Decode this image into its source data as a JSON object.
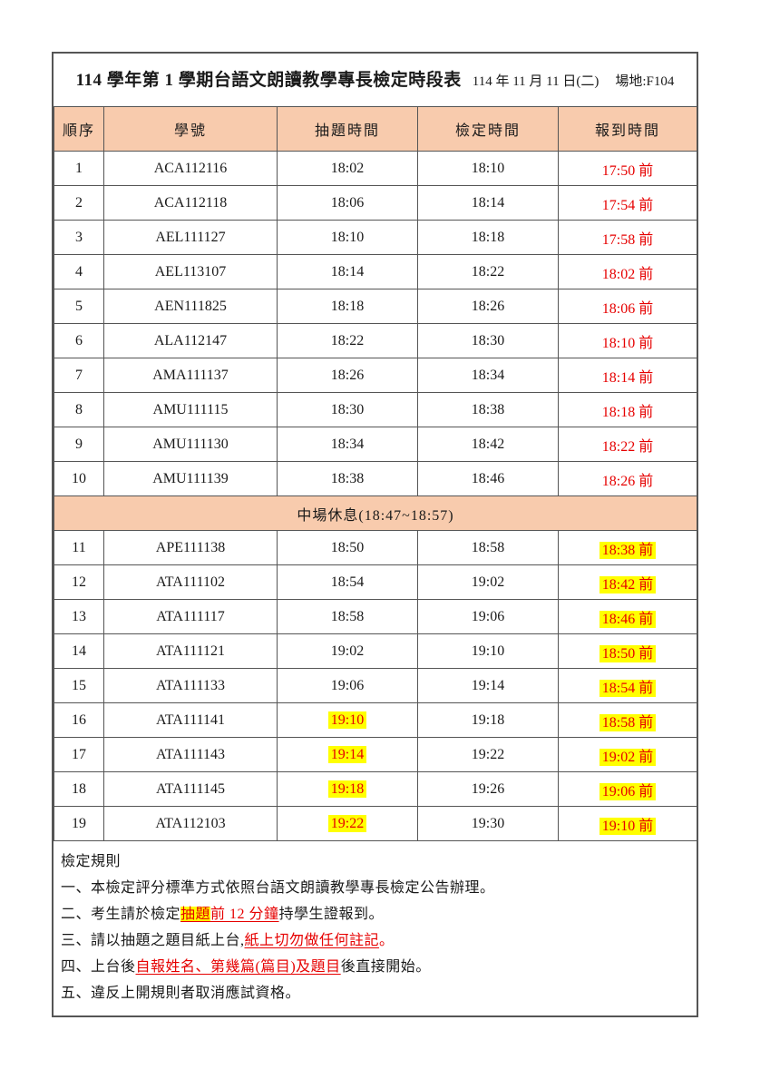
{
  "title": {
    "main": "114 學年第 1 學期台語文朗讀教學專長檢定時段表",
    "date": "114 年 11 月 11 日(二)",
    "venue": "場地:F104"
  },
  "colors": {
    "header_bg": "#F8CBAD",
    "red_text": "#E60000",
    "highlight_yellow": "#FFFF00"
  },
  "table": {
    "headers": [
      "順序",
      "學號",
      "抽題時間",
      "檢定時間",
      "報到時間"
    ],
    "break_label": "中場休息(18:47~18:57)",
    "rows_before_break": [
      {
        "no": "1",
        "student_id": "ACA112116",
        "draw_time": "18:02",
        "exam_time": "18:10",
        "checkin_time": "17:50 前",
        "draw_highlight": false,
        "checkin_highlight": false
      },
      {
        "no": "2",
        "student_id": "ACA112118",
        "draw_time": "18:06",
        "exam_time": "18:14",
        "checkin_time": "17:54 前",
        "draw_highlight": false,
        "checkin_highlight": false
      },
      {
        "no": "3",
        "student_id": "AEL111127",
        "draw_time": "18:10",
        "exam_time": "18:18",
        "checkin_time": "17:58 前",
        "draw_highlight": false,
        "checkin_highlight": false
      },
      {
        "no": "4",
        "student_id": "AEL113107",
        "draw_time": "18:14",
        "exam_time": "18:22",
        "checkin_time": "18:02 前",
        "draw_highlight": false,
        "checkin_highlight": false
      },
      {
        "no": "5",
        "student_id": "AEN111825",
        "draw_time": "18:18",
        "exam_time": "18:26",
        "checkin_time": "18:06 前",
        "draw_highlight": false,
        "checkin_highlight": false
      },
      {
        "no": "6",
        "student_id": "ALA112147",
        "draw_time": "18:22",
        "exam_time": "18:30",
        "checkin_time": "18:10 前",
        "draw_highlight": false,
        "checkin_highlight": false
      },
      {
        "no": "7",
        "student_id": "AMA111137",
        "draw_time": "18:26",
        "exam_time": "18:34",
        "checkin_time": "18:14 前",
        "draw_highlight": false,
        "checkin_highlight": false
      },
      {
        "no": "8",
        "student_id": "AMU111115",
        "draw_time": "18:30",
        "exam_time": "18:38",
        "checkin_time": "18:18 前",
        "draw_highlight": false,
        "checkin_highlight": false
      },
      {
        "no": "9",
        "student_id": "AMU111130",
        "draw_time": "18:34",
        "exam_time": "18:42",
        "checkin_time": "18:22 前",
        "draw_highlight": false,
        "checkin_highlight": false
      },
      {
        "no": "10",
        "student_id": "AMU111139",
        "draw_time": "18:38",
        "exam_time": "18:46",
        "checkin_time": "18:26 前",
        "draw_highlight": false,
        "checkin_highlight": false
      }
    ],
    "rows_after_break": [
      {
        "no": "11",
        "student_id": "APE111138",
        "draw_time": "18:50",
        "exam_time": "18:58",
        "checkin_time": "18:38 前",
        "draw_highlight": false,
        "checkin_highlight": true
      },
      {
        "no": "12",
        "student_id": "ATA111102",
        "draw_time": "18:54",
        "exam_time": "19:02",
        "checkin_time": "18:42 前",
        "draw_highlight": false,
        "checkin_highlight": true
      },
      {
        "no": "13",
        "student_id": "ATA111117",
        "draw_time": "18:58",
        "exam_time": "19:06",
        "checkin_time": "18:46 前",
        "draw_highlight": false,
        "checkin_highlight": true
      },
      {
        "no": "14",
        "student_id": "ATA111121",
        "draw_time": "19:02",
        "exam_time": "19:10",
        "checkin_time": "18:50 前",
        "draw_highlight": false,
        "checkin_highlight": true
      },
      {
        "no": "15",
        "student_id": "ATA111133",
        "draw_time": "19:06",
        "exam_time": "19:14",
        "checkin_time": "18:54 前",
        "draw_highlight": false,
        "checkin_highlight": true
      },
      {
        "no": "16",
        "student_id": "ATA111141",
        "draw_time": "19:10",
        "exam_time": "19:18",
        "checkin_time": "18:58 前",
        "draw_highlight": true,
        "checkin_highlight": true
      },
      {
        "no": "17",
        "student_id": "ATA111143",
        "draw_time": "19:14",
        "exam_time": "19:22",
        "checkin_time": "19:02 前",
        "draw_highlight": true,
        "checkin_highlight": true
      },
      {
        "no": "18",
        "student_id": "ATA111145",
        "draw_time": "19:18",
        "exam_time": "19:26",
        "checkin_time": "19:06 前",
        "draw_highlight": true,
        "checkin_highlight": true
      },
      {
        "no": "19",
        "student_id": "ATA112103",
        "draw_time": "19:22",
        "exam_time": "19:30",
        "checkin_time": "19:10 前",
        "draw_highlight": true,
        "checkin_highlight": true
      }
    ]
  },
  "rules": {
    "heading": "檢定規則",
    "items": [
      [
        {
          "t": "一、本檢定評分標準方式依照台語文朗讀教學專長檢定公告辦理。",
          "s": "n"
        }
      ],
      [
        {
          "t": "二、考生請於檢定",
          "s": "n"
        },
        {
          "t": "抽題",
          "s": "ruh"
        },
        {
          "t": "前 12 分鐘",
          "s": "ru"
        },
        {
          "t": "持學生證報到。",
          "s": "n"
        }
      ],
      [
        {
          "t": "三、請以抽題之題目紙上台,",
          "s": "n"
        },
        {
          "t": "紙上切勿做任何註記",
          "s": "ru"
        },
        {
          "t": "。",
          "s": "r"
        }
      ],
      [
        {
          "t": "四、上台後",
          "s": "n"
        },
        {
          "t": "自報姓名、第幾篇(篇目)及題目",
          "s": "ru"
        },
        {
          "t": "後直接開始。",
          "s": "n"
        }
      ],
      [
        {
          "t": "五、違反上開規則者取消應試資格。",
          "s": "n"
        }
      ]
    ]
  }
}
